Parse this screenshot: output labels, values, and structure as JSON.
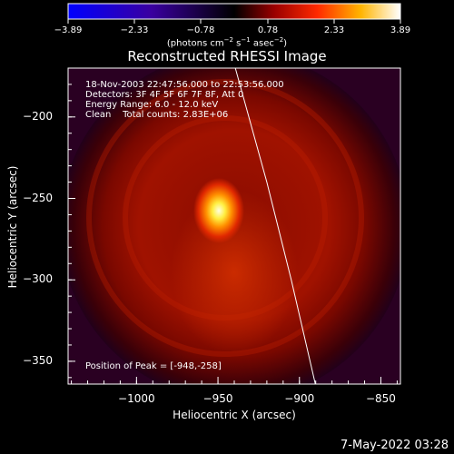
{
  "colorbar": {
    "ticks": [
      "−3.89",
      "−2.33",
      "−0.78",
      "0.78",
      "2.33",
      "3.89"
    ],
    "units_main": "(photons cm",
    "units_sup1": "−2",
    "units_mid": " s",
    "units_sup2": "−1",
    "units_mid2": " asec",
    "units_sup3": "−2",
    "units_end": ")"
  },
  "chart_data": {
    "type": "heatmap",
    "title": "Reconstructed RHESSI Image",
    "xlabel": "Heliocentric X (arcsec)",
    "ylabel": "Heliocentric Y (arcsec)",
    "xlim": [
      -1042,
      -838
    ],
    "ylim": [
      -364,
      -170
    ],
    "x_ticks": [
      -1000,
      -950,
      -900,
      -850
    ],
    "y_ticks": [
      -200,
      -250,
      -300,
      -350
    ],
    "x_tick_labels": [
      "−1000",
      "−950",
      "−900",
      "−850"
    ],
    "y_tick_labels": [
      "−200",
      "−250",
      "−300",
      "−350"
    ],
    "colorbar_range": [
      -3.89,
      3.89
    ],
    "colormap": "hot (blue–black–red–yellow–white)",
    "peak": {
      "x": -948,
      "y": -258
    },
    "limb_curve": [
      [
        -941,
        -164
      ],
      [
        -920,
        -240
      ],
      [
        -905,
        -300
      ],
      [
        -890,
        -365
      ]
    ],
    "info_lines": [
      "18-Nov-2003 22:47:56.000 to 22:53:56.000",
      "Detectors: 3F 4F 5F 6F 7F 8F, Att 0",
      "Energy Range: 6.0 - 12.0 keV",
      "Clean    Total counts: 2.83E+06"
    ],
    "peak_label": "Position of Peak = [-948,-258]"
  },
  "footer": {
    "datestamp": "7-May-2022 03:28"
  }
}
